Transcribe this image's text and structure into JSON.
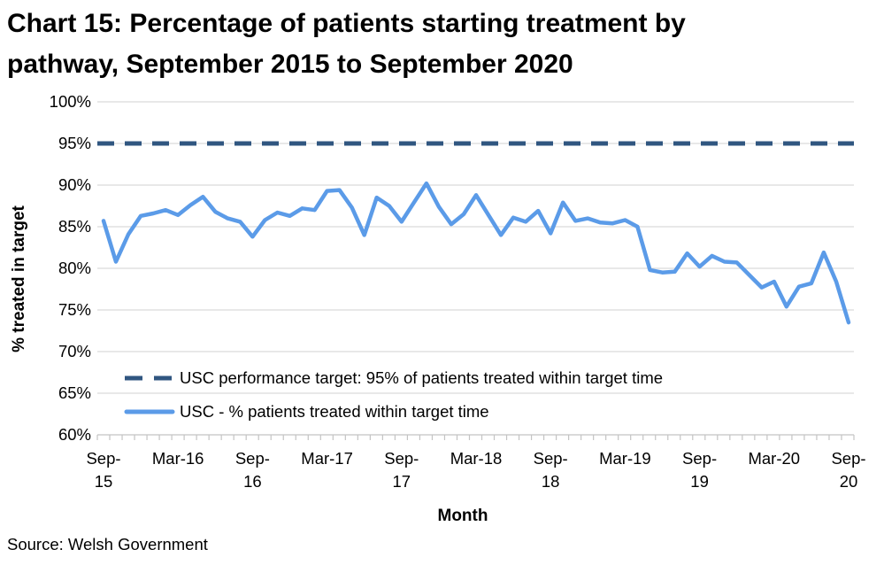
{
  "title_line1": "Chart 15: Percentage of patients starting treatment by",
  "title_line2": "pathway, September 2015 to September 2020",
  "source": "Source: Welsh Government",
  "colors": {
    "series_line": "#5B9BE8",
    "target_line": "#305680",
    "gridline": "#D9D9D9",
    "axis_line": "#C4C4C4",
    "text": "#000000"
  },
  "chart_data": {
    "type": "line",
    "title": "Chart 15: Percentage of patients starting treatment by pathway, September 2015 to September 2020",
    "xlabel": "Month",
    "ylabel": "% treated in target",
    "ylim": [
      60,
      100
    ],
    "y_tick_step": 5,
    "y_tick_labels": [
      "100%",
      "95%",
      "90%",
      "85%",
      "80%",
      "75%",
      "70%",
      "65%",
      "60%"
    ],
    "x_tick_labels": [
      "Sep-\n15",
      "Mar-16",
      "Sep-\n16",
      "Mar-17",
      "Sep-\n17",
      "Mar-18",
      "Sep-\n18",
      "Mar-19",
      "Sep-\n19",
      "Mar-20",
      "Sep-\n20"
    ],
    "x_interval": "monthly",
    "grid": true,
    "legend_position": "inside-bottom-left",
    "target": {
      "label": "USC performance target: 95% of patients treated within target time",
      "value": 95,
      "style": "dashed"
    },
    "series": [
      {
        "name": "USC - % patients treated within target time",
        "x": [
          "Sep-15",
          "Oct-15",
          "Nov-15",
          "Dec-15",
          "Jan-16",
          "Feb-16",
          "Mar-16",
          "Apr-16",
          "May-16",
          "Jun-16",
          "Jul-16",
          "Aug-16",
          "Sep-16",
          "Oct-16",
          "Nov-16",
          "Dec-16",
          "Jan-17",
          "Feb-17",
          "Mar-17",
          "Apr-17",
          "May-17",
          "Jun-17",
          "Jul-17",
          "Aug-17",
          "Sep-17",
          "Oct-17",
          "Nov-17",
          "Dec-17",
          "Jan-18",
          "Feb-18",
          "Mar-18",
          "Apr-18",
          "May-18",
          "Jun-18",
          "Jul-18",
          "Aug-18",
          "Sep-18",
          "Oct-18",
          "Nov-18",
          "Dec-18",
          "Jan-19",
          "Feb-19",
          "Mar-19",
          "Apr-19",
          "May-19",
          "Jun-19",
          "Jul-19",
          "Aug-19",
          "Sep-19",
          "Oct-19",
          "Nov-19",
          "Dec-19",
          "Jan-20",
          "Feb-20",
          "Mar-20",
          "Apr-20",
          "May-20",
          "Jun-20",
          "Jul-20",
          "Aug-20",
          "Sep-20"
        ],
        "values": [
          85.7,
          80.8,
          84.1,
          86.3,
          86.6,
          87.0,
          86.4,
          87.6,
          88.6,
          86.8,
          86.0,
          85.6,
          83.8,
          85.8,
          86.7,
          86.3,
          87.2,
          87.0,
          89.3,
          89.4,
          87.3,
          84.0,
          88.5,
          87.5,
          85.6,
          87.9,
          90.2,
          87.4,
          85.3,
          86.5,
          88.8,
          86.4,
          84.0,
          86.1,
          85.6,
          86.9,
          84.2,
          87.9,
          85.7,
          86.0,
          85.5,
          85.4,
          85.8,
          85.0,
          79.8,
          79.5,
          79.6,
          81.8,
          80.2,
          81.5,
          80.8,
          80.7,
          79.2,
          77.7,
          78.4,
          75.4,
          77.8,
          78.2,
          81.9,
          78.4,
          73.5
        ]
      }
    ]
  }
}
